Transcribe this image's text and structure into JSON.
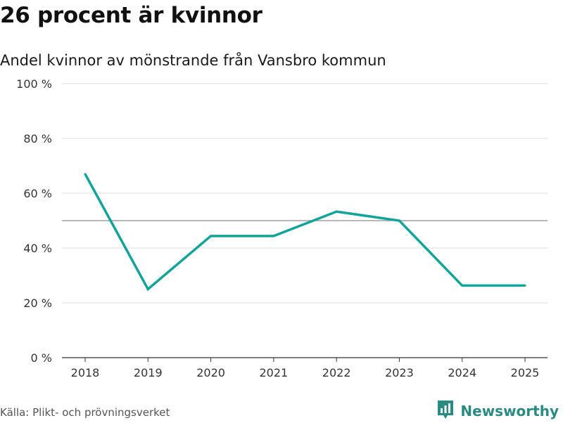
{
  "title": "26 procent är kvinnor",
  "subtitle": "Andel kvinnor av mönstrande från Vansbro kommun",
  "source": "Källa: Plikt- och prövningsverket",
  "brand": {
    "name": "Newsworthy",
    "icon": "newsworthy-logo-icon",
    "color": "#2b8a82"
  },
  "chart_data": {
    "type": "line",
    "categories": [
      "2018",
      "2019",
      "2020",
      "2021",
      "2022",
      "2023",
      "2024",
      "2025"
    ],
    "series": [
      {
        "name": "Andel kvinnor",
        "values": [
          67,
          25,
          44.4,
          44.4,
          53.3,
          50,
          26.3,
          26.3
        ],
        "color": "#13a399"
      }
    ],
    "ylim": [
      0,
      100
    ],
    "yticks": [
      0,
      20,
      40,
      60,
      80,
      100
    ],
    "ytick_labels": [
      "0 %",
      "20 %",
      "40 %",
      "60 %",
      "80 %",
      "100 %"
    ],
    "reference_line": 50,
    "grid": true,
    "xlabel": "",
    "ylabel": ""
  }
}
